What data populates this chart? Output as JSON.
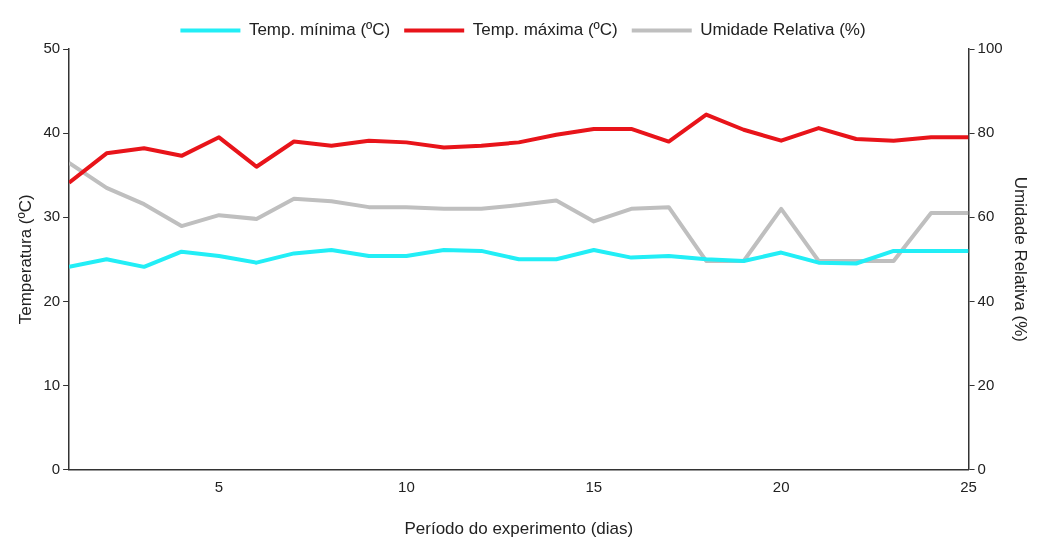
{
  "chart_data": {
    "type": "line",
    "xlabel": "Período do experimento (dias)",
    "ylabel": "Temperatura (ºC)",
    "y2label": "Umidade Relativa (%)",
    "x": [
      1,
      2,
      3,
      4,
      5,
      6,
      7,
      8,
      9,
      10,
      11,
      12,
      13,
      14,
      15,
      16,
      17,
      18,
      19,
      20,
      21,
      22,
      23,
      24,
      25
    ],
    "xlim": [
      1,
      25
    ],
    "xticks": [
      5,
      10,
      15,
      20,
      25
    ],
    "ylim": [
      0,
      50
    ],
    "yticks": [
      0,
      10,
      20,
      30,
      40,
      50
    ],
    "y2lim": [
      0,
      100
    ],
    "y2ticks": [
      0,
      20,
      40,
      60,
      80,
      100
    ],
    "grid": false,
    "legend": "top",
    "marker": "none",
    "line_style": "solid",
    "series": [
      {
        "name": "Temp. mínima (ºC)",
        "color": "#22eef6",
        "values": [
          24.1,
          25,
          24.1,
          25.9,
          25.4,
          24.6,
          25.7,
          26.1,
          25.4,
          25.4,
          26.1,
          26,
          25,
          25,
          26.1,
          25.2,
          25.4,
          25,
          24.8,
          25.8,
          24.6,
          24.5,
          26,
          26,
          26
        ]
      },
      {
        "name": "Temp. máxima (ºC)",
        "color": "#e8141a",
        "values": [
          34.1,
          37.6,
          38.2,
          37.3,
          39.5,
          36,
          39,
          38.5,
          39.1,
          38.9,
          38.3,
          38.5,
          38.9,
          39.8,
          40.5,
          40.5,
          39,
          42.2,
          40.4,
          39.1,
          40.6,
          39.3,
          39.1,
          39.5,
          39.5
        ]
      },
      {
        "name": "Umidade Relativa (%)",
        "color": "#bfbfbf",
        "axis": "y2",
        "values": [
          72.9,
          67,
          63.1,
          57.9,
          60.5,
          59.6,
          64.4,
          63.8,
          62.4,
          62.4,
          62,
          62,
          62.9,
          64,
          59,
          62,
          62.4,
          49.6,
          49.6,
          62,
          49.6,
          49.6,
          49.6,
          61,
          61
        ]
      }
    ]
  }
}
